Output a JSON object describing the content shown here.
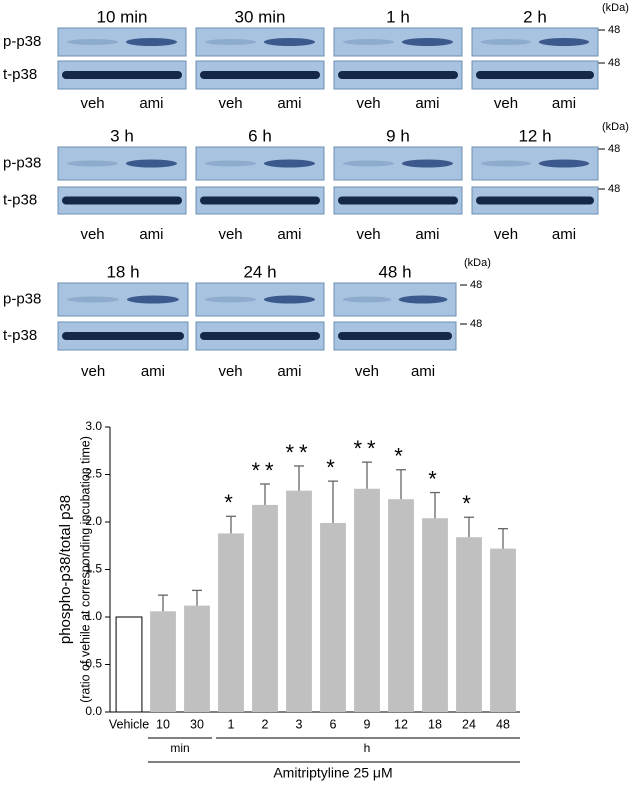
{
  "blots": {
    "band_labels": [
      "p-p38",
      "t-p38"
    ],
    "lane_labels": [
      "veh",
      "ami"
    ],
    "unit": "(kDa)",
    "marker": "48",
    "rows": [
      [
        "10 min",
        "30 min",
        "1 h",
        "2 h"
      ],
      [
        "3 h",
        "6 h",
        "9 h",
        "12 h"
      ],
      [
        "18 h",
        "24 h",
        "48 h"
      ]
    ]
  },
  "chart_data": {
    "type": "bar",
    "ylabel": "phospho-p38/total p38",
    "ylabel_sub": "(ratio of vehile at corresponding incubation time)",
    "categories": [
      "Vehicle",
      "10",
      "30",
      "1",
      "2",
      "3",
      "6",
      "9",
      "12",
      "18",
      "24",
      "48"
    ],
    "values": [
      1.0,
      1.06,
      1.12,
      1.88,
      2.18,
      2.33,
      1.99,
      2.35,
      2.24,
      2.04,
      1.84,
      1.72
    ],
    "errors": [
      null,
      0.17,
      0.16,
      0.18,
      0.22,
      0.26,
      0.44,
      0.28,
      0.31,
      0.27,
      0.21,
      0.21
    ],
    "significance": [
      null,
      null,
      null,
      "*",
      "**",
      "**",
      "*",
      "**",
      "*",
      "*",
      "*",
      null
    ],
    "colors": [
      "#ffffff",
      "#c0c0c0",
      "#c0c0c0",
      "#c0c0c0",
      "#c0c0c0",
      "#c0c0c0",
      "#c0c0c0",
      "#c0c0c0",
      "#c0c0c0",
      "#c0c0c0",
      "#c0c0c0",
      "#c0c0c0"
    ],
    "groups": [
      "min",
      "h"
    ],
    "xlabel": "Amitriptyline 25 μM",
    "ylim": [
      0,
      3
    ],
    "yticks": [
      {
        "value": 0,
        "label": "0.0"
      },
      {
        "value": 0.5,
        "label": "0.5"
      },
      {
        "value": 1,
        "label": "1.0"
      },
      {
        "value": 1.5,
        "label": "1.5"
      },
      {
        "value": 2,
        "label": "2.0"
      },
      {
        "value": 2.5,
        "label": "2.5"
      },
      {
        "value": 3,
        "label": "3.0"
      }
    ]
  }
}
